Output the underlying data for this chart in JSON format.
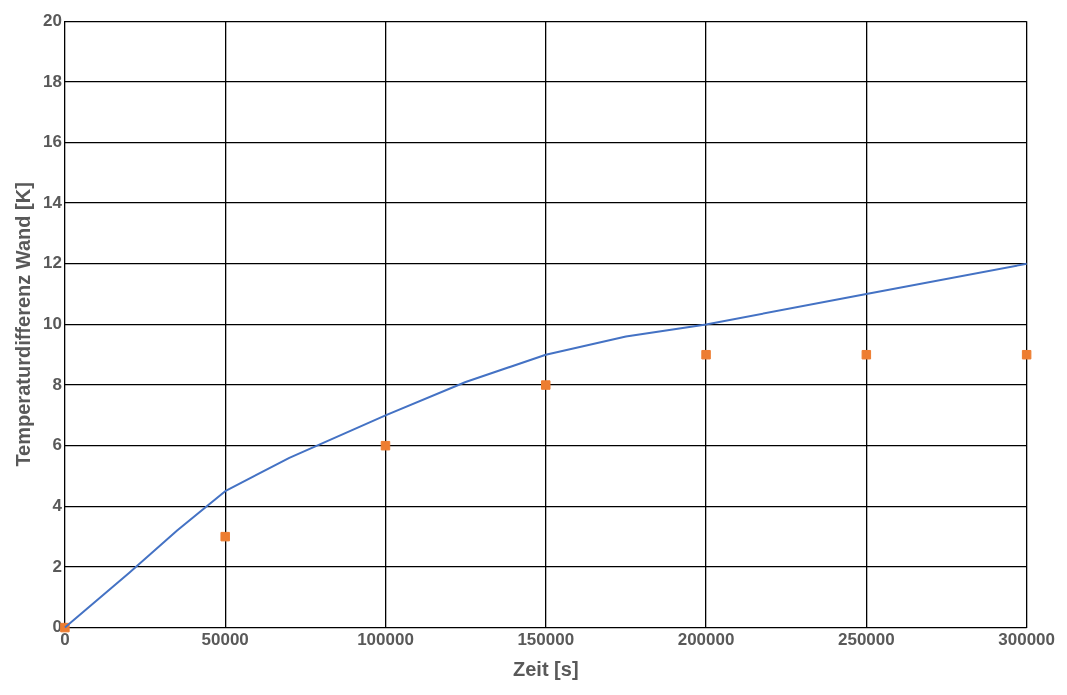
{
  "chart_data": {
    "type": "line",
    "xlabel": "Zeit [s]",
    "ylabel": "Temperaturdifferenz Wand [K]",
    "xlim": [
      0,
      300000
    ],
    "xticks": [
      0,
      50000,
      100000,
      150000,
      200000,
      250000,
      300000
    ],
    "ylim": [
      0,
      20
    ],
    "yticks": [
      0,
      2,
      4,
      6,
      8,
      10,
      12,
      14,
      16,
      18,
      20
    ],
    "grid": true,
    "legend": false,
    "series": [
      {
        "color": "#4472c4",
        "marker": "none",
        "x": [
          0,
          20000,
          35000,
          50000,
          70000,
          100000,
          125000,
          150000,
          175000,
          200000,
          250000,
          300000
        ],
        "values": [
          0,
          1.8,
          3.2,
          4.5,
          5.6,
          7,
          8.1,
          9,
          9.6,
          10,
          11,
          12
        ]
      },
      {
        "type": "scatter",
        "color": "#ed7d31",
        "marker": "square",
        "x": [
          0,
          50000,
          100000,
          150000,
          200000,
          250000,
          300000
        ],
        "values": [
          0,
          3,
          6,
          8,
          9,
          9,
          9
        ]
      }
    ]
  }
}
